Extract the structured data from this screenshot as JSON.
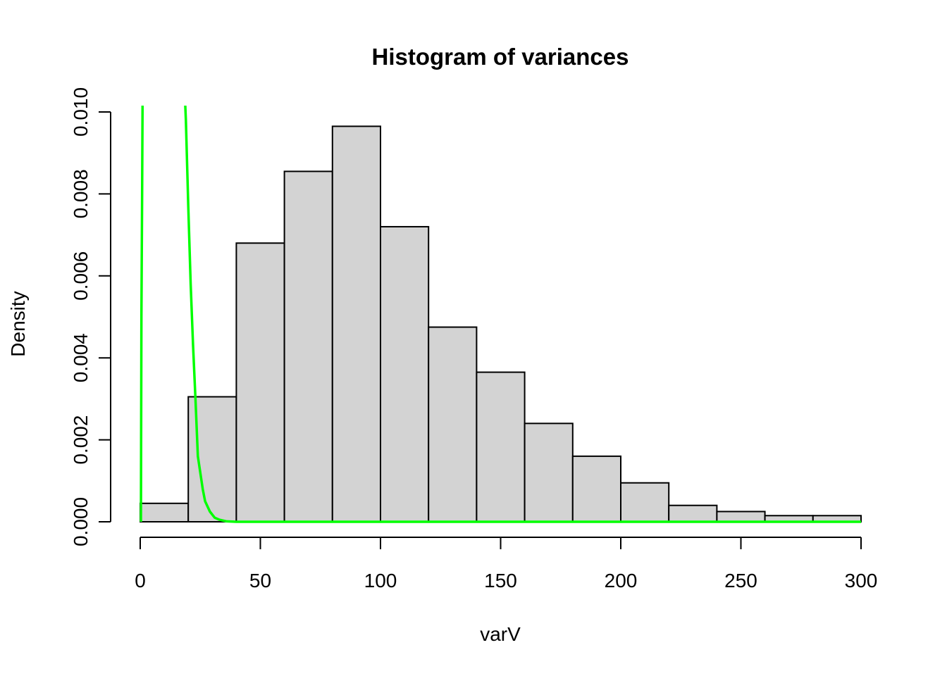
{
  "chart_data": {
    "type": "bar",
    "title": "Histogram of variances",
    "xlabel": "varV",
    "ylabel": "Density",
    "xlim": [
      0,
      300
    ],
    "ylim": [
      0,
      0.01
    ],
    "x_ticks": [
      "0",
      "50",
      "100",
      "150",
      "200",
      "250",
      "300"
    ],
    "x_tick_values": [
      0,
      50,
      100,
      150,
      200,
      250,
      300
    ],
    "y_ticks": [
      "0.000",
      "0.002",
      "0.004",
      "0.006",
      "0.008",
      "0.010"
    ],
    "y_tick_values": [
      0,
      0.002,
      0.004,
      0.006,
      0.008,
      0.01
    ],
    "bins": [
      {
        "start": 0,
        "end": 20,
        "density": 0.00045
      },
      {
        "start": 20,
        "end": 40,
        "density": 0.00305
      },
      {
        "start": 40,
        "end": 60,
        "density": 0.0068
      },
      {
        "start": 60,
        "end": 80,
        "density": 0.00855
      },
      {
        "start": 80,
        "end": 100,
        "density": 0.00965
      },
      {
        "start": 100,
        "end": 120,
        "density": 0.0072
      },
      {
        "start": 120,
        "end": 140,
        "density": 0.00475
      },
      {
        "start": 140,
        "end": 160,
        "density": 0.00365
      },
      {
        "start": 160,
        "end": 180,
        "density": 0.0024
      },
      {
        "start": 180,
        "end": 200,
        "density": 0.0016
      },
      {
        "start": 200,
        "end": 220,
        "density": 0.00095
      },
      {
        "start": 220,
        "end": 240,
        "density": 0.0004
      },
      {
        "start": 240,
        "end": 260,
        "density": 0.00025
      },
      {
        "start": 260,
        "end": 280,
        "density": 0.00015
      },
      {
        "start": 280,
        "end": 300,
        "density": 0.00015
      }
    ],
    "bar_color": "#d3d3d3",
    "curves": [
      {
        "color": "#00ff00",
        "points": [
          [
            0.3,
            0
          ],
          [
            0.5,
            0.005
          ],
          [
            0.8,
            0.008
          ],
          [
            1.0,
            0.0105
          ]
        ]
      },
      {
        "color": "#00ff00",
        "points": [
          [
            18.5,
            0.0105
          ],
          [
            19,
            0.0098
          ],
          [
            20,
            0.0077
          ],
          [
            21,
            0.0058
          ],
          [
            22,
            0.0043
          ],
          [
            23,
            0.003
          ],
          [
            24,
            0.0016
          ],
          [
            26,
            0.0008
          ],
          [
            27,
            0.0005
          ],
          [
            29,
            0.00025
          ],
          [
            31,
            0.0001
          ],
          [
            33,
            5e-05
          ],
          [
            36,
            1e-05
          ],
          [
            40,
            0
          ],
          [
            300,
            0
          ]
        ]
      }
    ],
    "grid": false
  }
}
